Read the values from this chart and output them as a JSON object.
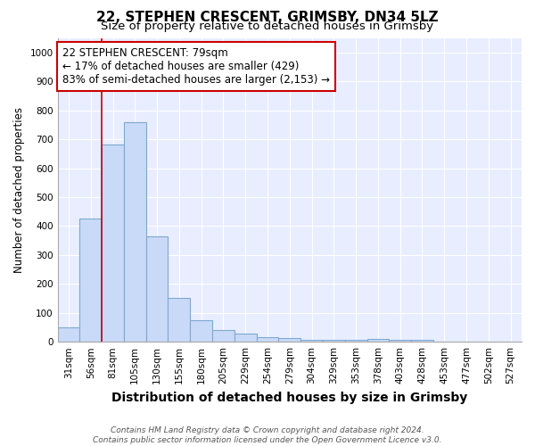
{
  "title": "22, STEPHEN CRESCENT, GRIMSBY, DN34 5LZ",
  "subtitle": "Size of property relative to detached houses in Grimsby",
  "xlabel": "Distribution of detached houses by size in Grimsby",
  "ylabel": "Number of detached properties",
  "categories": [
    "31sqm",
    "56sqm",
    "81sqm",
    "105sqm",
    "130sqm",
    "155sqm",
    "180sqm",
    "205sqm",
    "229sqm",
    "254sqm",
    "279sqm",
    "304sqm",
    "329sqm",
    "353sqm",
    "378sqm",
    "403sqm",
    "428sqm",
    "453sqm",
    "477sqm",
    "502sqm",
    "527sqm"
  ],
  "values": [
    50,
    425,
    683,
    760,
    365,
    152,
    73,
    40,
    28,
    17,
    13,
    8,
    6,
    6,
    9,
    8,
    8,
    0,
    0,
    0,
    0
  ],
  "bar_color": "#c9daf8",
  "bar_edgecolor": "#7fa8d0",
  "bar_linewidth": 0.8,
  "vline_index": 2,
  "vline_color": "#cc0000",
  "vline_linewidth": 1.2,
  "annotation_line1": "22 STEPHEN CRESCENT: 79sqm",
  "annotation_line2": "← 17% of detached houses are smaller (429)",
  "annotation_line3": "83% of semi-detached houses are larger (2,153) →",
  "annotation_boxcolor": "white",
  "annotation_edgecolor": "#cc0000",
  "ylim": [
    0,
    1050
  ],
  "yticks": [
    0,
    100,
    200,
    300,
    400,
    500,
    600,
    700,
    800,
    900,
    1000
  ],
  "footer1": "Contains HM Land Registry data © Crown copyright and database right 2024.",
  "footer2": "Contains public sector information licensed under the Open Government Licence v3.0.",
  "plot_bgcolor": "#e8eeff",
  "title_fontsize": 11,
  "subtitle_fontsize": 9.5,
  "xlabel_fontsize": 10,
  "ylabel_fontsize": 8.5,
  "tick_fontsize": 7.5,
  "annotation_fontsize": 8.5,
  "footer_fontsize": 6.5
}
